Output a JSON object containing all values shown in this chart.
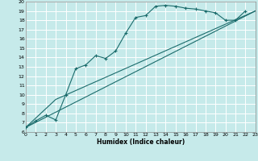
{
  "xlabel": "Humidex (Indice chaleur)",
  "xlim": [
    0,
    23
  ],
  "ylim": [
    6,
    20
  ],
  "xticks": [
    0,
    1,
    2,
    3,
    4,
    5,
    6,
    7,
    8,
    9,
    10,
    11,
    12,
    13,
    14,
    15,
    16,
    17,
    18,
    19,
    20,
    21,
    22,
    23
  ],
  "yticks": [
    6,
    7,
    8,
    9,
    10,
    11,
    12,
    13,
    14,
    15,
    16,
    17,
    18,
    19,
    20
  ],
  "bg_color": "#c6eaea",
  "grid_color": "#ffffff",
  "line_color": "#1a6b6b",
  "line1_x": [
    0,
    1,
    2,
    3,
    4,
    5,
    6,
    7,
    8,
    9,
    10,
    11,
    12,
    13,
    14,
    15,
    16,
    17,
    18,
    19,
    20,
    21,
    22
  ],
  "line1_y": [
    6.5,
    7.2,
    7.8,
    7.3,
    10.0,
    12.8,
    13.2,
    14.2,
    13.9,
    14.7,
    16.6,
    18.3,
    18.5,
    19.5,
    19.6,
    19.5,
    19.3,
    19.2,
    19.0,
    18.8,
    18.0,
    18.0,
    19.0
  ],
  "line2_x": [
    0,
    3,
    23
  ],
  "line2_y": [
    6.5,
    9.5,
    19.0
  ],
  "line3_x": [
    0,
    23
  ],
  "line3_y": [
    6.5,
    19.0
  ]
}
